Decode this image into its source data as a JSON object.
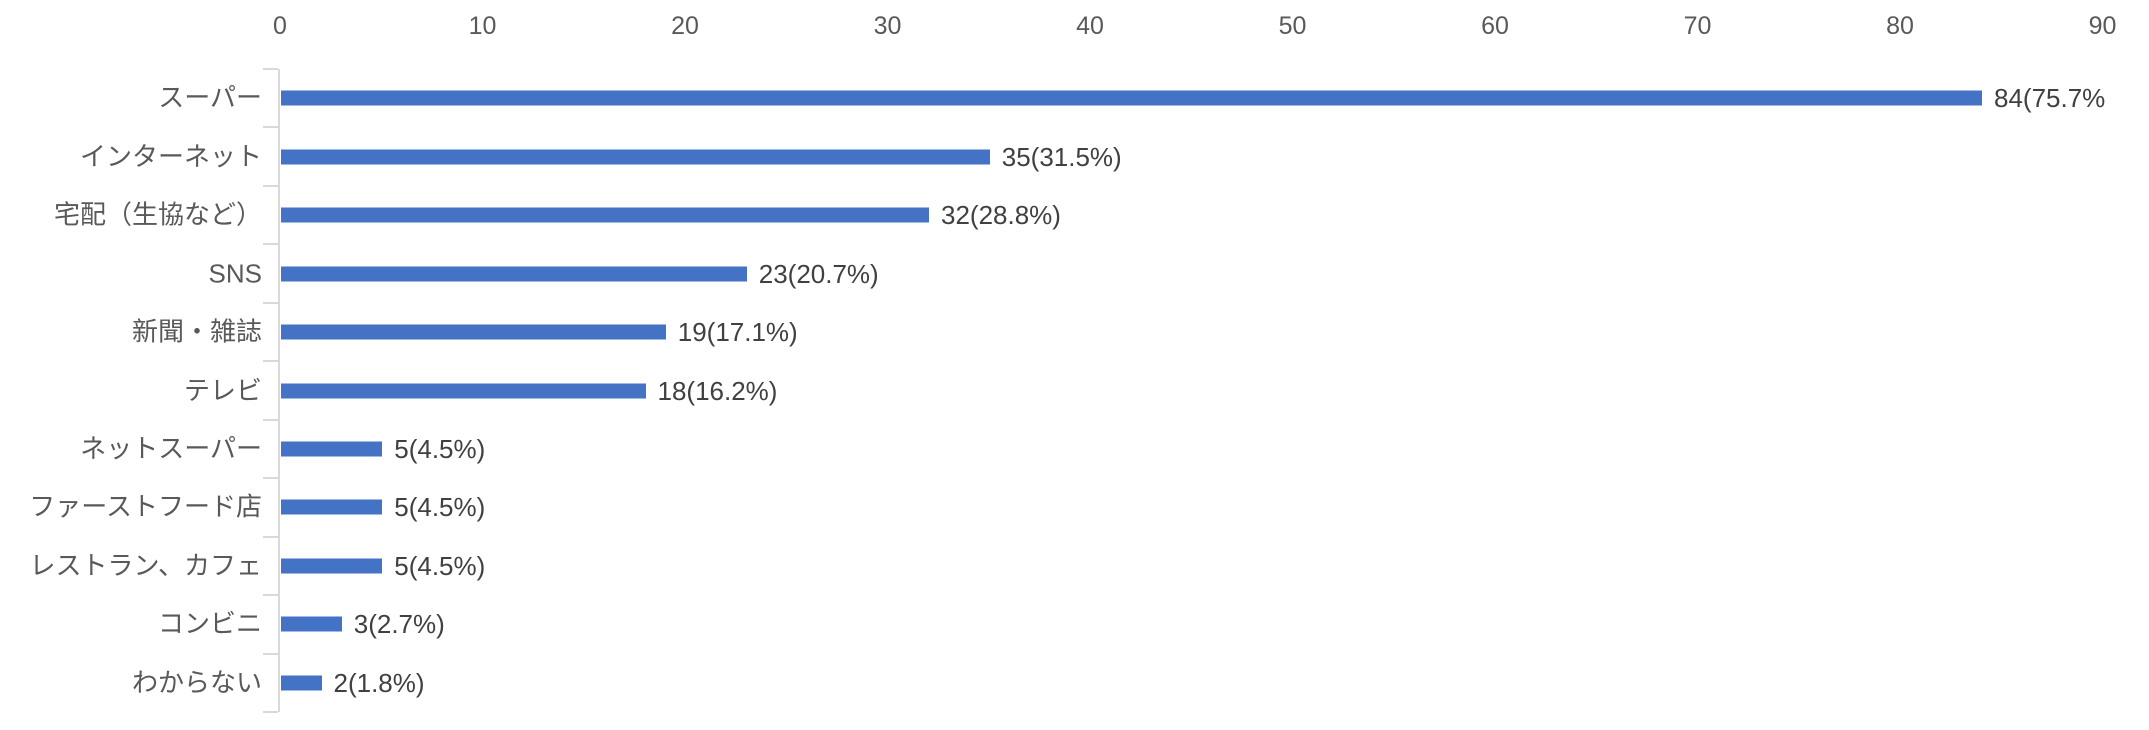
{
  "chart_data": {
    "type": "bar",
    "orientation": "horizontal",
    "title": "",
    "xlabel": "",
    "ylabel": "",
    "categories": [
      "スーパー",
      "インターネット",
      "宅配（生協など）",
      "SNS",
      "新聞・雑誌",
      "テレビ",
      "ネットスーパー",
      "ファーストフード店",
      "レストラン、カフェ",
      "コンビニ",
      "わからない"
    ],
    "values": [
      84,
      35,
      32,
      23,
      19,
      18,
      5,
      5,
      5,
      3,
      2
    ],
    "data_labels": [
      "84(75.7%",
      "35(31.5%)",
      "32(28.8%)",
      "23(20.7%)",
      "19(17.1%)",
      "18(16.2%)",
      "5(4.5%)",
      "5(4.5%)",
      "5(4.5%)",
      "3(2.7%)",
      "2(1.8%)"
    ],
    "axis": {
      "position": "top",
      "min": 0,
      "max": 90,
      "step": 10,
      "ticks": [
        0,
        10,
        20,
        30,
        40,
        50,
        60,
        70,
        80,
        90
      ]
    },
    "grid": false,
    "legend": false,
    "colors": {
      "bar": "#4472C4",
      "axis_line": "#D9D9D9",
      "tick_mark": "#D9D9D9",
      "tick_label": "#595959",
      "category_label": "#595959",
      "data_label": "#404040",
      "background": "#FFFFFF"
    }
  }
}
